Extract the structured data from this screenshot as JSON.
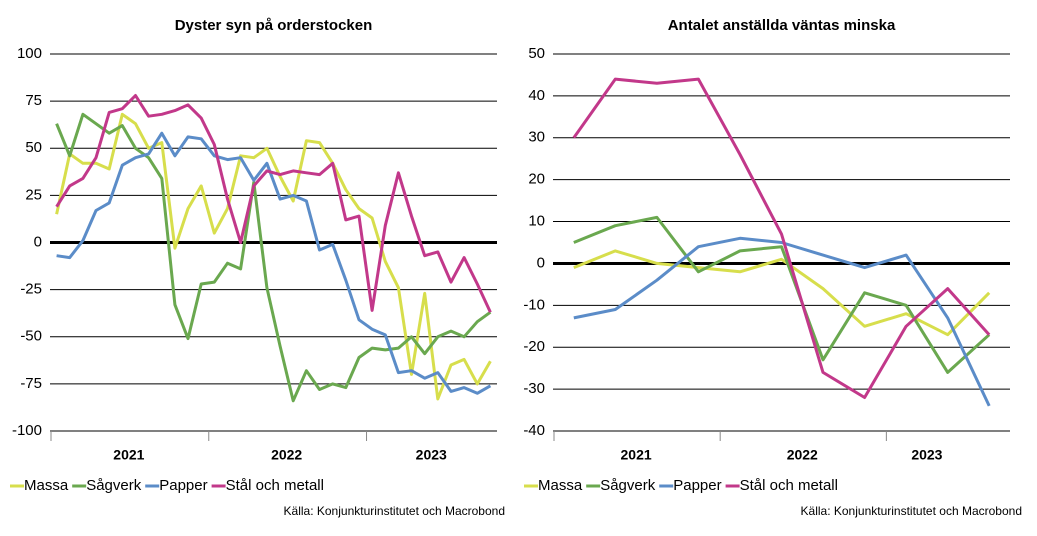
{
  "chart_data": [
    {
      "type": "line",
      "title": "Dyster syn på orderstocken",
      "categories": [
        null,
        null,
        null,
        null,
        null,
        "2021",
        null,
        null,
        null,
        null,
        null,
        null,
        null,
        null,
        null,
        null,
        null,
        "2022",
        null,
        null,
        null,
        null,
        null,
        null,
        null,
        null,
        null,
        null,
        "2023",
        null,
        null,
        null,
        null,
        null
      ],
      "ylim": [
        -100,
        100
      ],
      "yticks": [
        -100,
        -75,
        -50,
        -25,
        0,
        25,
        50,
        75,
        100
      ],
      "grid": true,
      "series": [
        {
          "name": "Massa",
          "color": "#d7de4c",
          "values": [
            15,
            47,
            42,
            42,
            39,
            68,
            63,
            50,
            53,
            -3,
            18,
            30,
            5,
            18,
            46,
            45,
            50,
            35,
            22,
            54,
            53,
            42,
            28,
            18,
            13,
            -10,
            -24,
            -70,
            -27,
            -83,
            -65,
            -62,
            -75,
            -63
          ]
        },
        {
          "name": "Sågverk",
          "color": "#6aa84f",
          "values": [
            63,
            46,
            68,
            63,
            58,
            62,
            50,
            45,
            34,
            -33,
            -51,
            -22,
            -21,
            -11,
            -14,
            32,
            -24,
            -55,
            -84,
            -68,
            -78,
            -75,
            -77,
            -61,
            -56,
            -57,
            -56,
            -50,
            -59,
            -50,
            -47,
            -50,
            -42,
            -37
          ]
        },
        {
          "name": "Papper",
          "color": "#5b8cc8",
          "values": [
            -7,
            -8,
            1,
            17,
            21,
            41,
            45,
            47,
            58,
            46,
            56,
            55,
            46,
            44,
            45,
            33,
            42,
            23,
            25,
            22,
            -4,
            -1,
            -20,
            -41,
            -46,
            -49,
            -69,
            -68,
            -72,
            -69,
            -79,
            -77,
            -80,
            -76
          ]
        },
        {
          "name": "Stål och metall",
          "color": "#c2388a",
          "values": [
            19,
            30,
            34,
            45,
            69,
            71,
            78,
            67,
            68,
            70,
            73,
            66,
            52,
            23,
            0,
            30,
            38,
            36,
            38,
            37,
            36,
            42,
            12,
            14,
            -36,
            9,
            37,
            14,
            -7,
            -5,
            -21,
            -8,
            -22,
            -37
          ]
        }
      ],
      "source": "Källa: Konjunkturinstitutet och Macrobond"
    },
    {
      "type": "line",
      "title": "Antalet anställda väntas minska",
      "categories": [
        null,
        "2021",
        null,
        null,
        null,
        "2022",
        null,
        null,
        "2023",
        null,
        null
      ],
      "ylim": [
        -40,
        50
      ],
      "yticks": [
        -40,
        -30,
        -20,
        -10,
        0,
        10,
        20,
        30,
        40,
        50
      ],
      "grid": true,
      "series": [
        {
          "name": "Massa",
          "color": "#d7de4c",
          "values": [
            -1,
            3,
            0,
            -1,
            -2,
            1,
            -6,
            -15,
            -12,
            -17,
            -7
          ]
        },
        {
          "name": "Sågverk",
          "color": "#6aa84f",
          "values": [
            5,
            9,
            11,
            -2,
            3,
            4,
            -23,
            -7,
            -10,
            -26,
            -17
          ]
        },
        {
          "name": "Papper",
          "color": "#5b8cc8",
          "values": [
            -13,
            -11,
            -4,
            4,
            6,
            5,
            2,
            -1,
            2,
            -13,
            -34
          ]
        },
        {
          "name": "Stål och metall",
          "color": "#c2388a",
          "values": [
            30,
            44,
            43,
            44,
            26,
            7,
            -26,
            -32,
            -15,
            -6,
            -17
          ]
        }
      ],
      "source": "Källa: Konjunkturinstitutet och Macrobond"
    }
  ]
}
